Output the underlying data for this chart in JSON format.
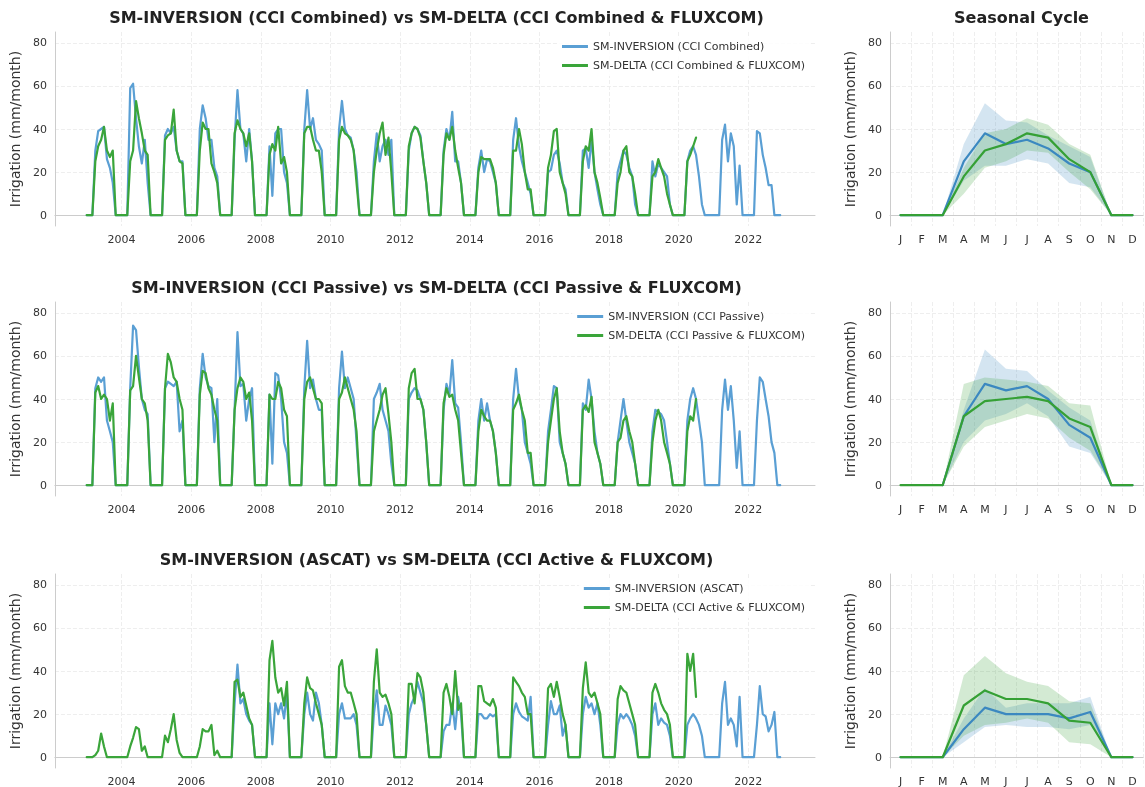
{
  "chart_data": [
    {
      "type": "line",
      "title": "SM-INVERSION (CCI Combined) vs SM-DELTA (CCI Combined & FLUXCOM)",
      "ylabel": "Irrigation (mm/month)",
      "xlim": [
        "2002-02",
        "2023-12"
      ],
      "xticks": [
        "2004",
        "2006",
        "2008",
        "2010",
        "2012",
        "2014",
        "2016",
        "2018",
        "2020",
        "2022"
      ],
      "ylim": [
        -5,
        85
      ],
      "yticks": [
        0,
        20,
        40,
        60,
        80
      ],
      "grid": true,
      "legend": "top right",
      "x": [
        "2003-01",
        "2003-03",
        "2003-04",
        "2003-05",
        "2003-06",
        "2003-07",
        "2003-08",
        "2003-09",
        "2003-10",
        "2003-11",
        "2004-03",
        "2004-04",
        "2004-05",
        "2004-06",
        "2004-07",
        "2004-08",
        "2004-09",
        "2004-10",
        "2004-11",
        "2005-03",
        "2005-04",
        "2005-05",
        "2005-06",
        "2005-07",
        "2005-08",
        "2005-09",
        "2005-10",
        "2005-11",
        "2006-03",
        "2006-04",
        "2006-05",
        "2006-06",
        "2006-07",
        "2006-08",
        "2006-09",
        "2006-10",
        "2006-11",
        "2007-03",
        "2007-04",
        "2007-05",
        "2007-06",
        "2007-07",
        "2007-08",
        "2007-09",
        "2007-10",
        "2007-11",
        "2008-03",
        "2008-04",
        "2008-05",
        "2008-06",
        "2008-07",
        "2008-08",
        "2008-09",
        "2008-10",
        "2008-11",
        "2009-03",
        "2009-04",
        "2009-05",
        "2009-06",
        "2009-07",
        "2009-08",
        "2009-09",
        "2009-10",
        "2009-11",
        "2010-03",
        "2010-04",
        "2010-05",
        "2010-06",
        "2010-07",
        "2010-08",
        "2010-09",
        "2010-10",
        "2010-11",
        "2011-03",
        "2011-04",
        "2011-05",
        "2011-06",
        "2011-07",
        "2011-08",
        "2011-09",
        "2011-10",
        "2011-11",
        "2012-03",
        "2012-04",
        "2012-05",
        "2012-06",
        "2012-07",
        "2012-08",
        "2012-09",
        "2012-10",
        "2012-11",
        "2013-03",
        "2013-04",
        "2013-05",
        "2013-06",
        "2013-07",
        "2013-08",
        "2013-09",
        "2013-10",
        "2013-11",
        "2014-03",
        "2014-04",
        "2014-05",
        "2014-06",
        "2014-07",
        "2014-08",
        "2014-09",
        "2014-10",
        "2014-11",
        "2015-03",
        "2015-04",
        "2015-05",
        "2015-06",
        "2015-07",
        "2015-08",
        "2015-09",
        "2015-10",
        "2015-11",
        "2016-03",
        "2016-04",
        "2016-05",
        "2016-06",
        "2016-07",
        "2016-08",
        "2016-09",
        "2016-10",
        "2016-11",
        "2017-03",
        "2017-04",
        "2017-05",
        "2017-06",
        "2017-07",
        "2017-08",
        "2017-09",
        "2017-10",
        "2017-11",
        "2018-03",
        "2018-04",
        "2018-05",
        "2018-06",
        "2018-07",
        "2018-08",
        "2018-09",
        "2018-10",
        "2018-11",
        "2019-03",
        "2019-04",
        "2019-05",
        "2019-06",
        "2019-07",
        "2019-08",
        "2019-09",
        "2019-10",
        "2019-11",
        "2020-03",
        "2020-04",
        "2020-05",
        "2020-06",
        "2020-07",
        "2020-08",
        "2020-09",
        "2020-10",
        "2020-11",
        "2021-03",
        "2021-04",
        "2021-05",
        "2021-06",
        "2021-07",
        "2021-08",
        "2021-09",
        "2021-10",
        "2021-11",
        "2022-03",
        "2022-04",
        "2022-05",
        "2022-06",
        "2022-07",
        "2022-08",
        "2022-09",
        "2022-10",
        "2022-11",
        "2022-12"
      ],
      "series": [
        {
          "name": "SM-INVERSION (CCI Combined)",
          "color": "#5a9fd4",
          "values": [
            0,
            0,
            30,
            39,
            40,
            41,
            26,
            22,
            15,
            0,
            0,
            59,
            61,
            45,
            32,
            24,
            35,
            15,
            0,
            0,
            37,
            40,
            38,
            41,
            30,
            25,
            25,
            0,
            0,
            40,
            51,
            45,
            35,
            35,
            22,
            18,
            0,
            0,
            35,
            58,
            40,
            38,
            25,
            40,
            25,
            0,
            0,
            32,
            9,
            38,
            40,
            40,
            20,
            15,
            0,
            0,
            40,
            58,
            40,
            45,
            35,
            33,
            30,
            0,
            0,
            40,
            53,
            40,
            37,
            36,
            30,
            20,
            0,
            0,
            25,
            38,
            25,
            32,
            35,
            28,
            35,
            0,
            0,
            30,
            38,
            41,
            40,
            37,
            25,
            15,
            0,
            0,
            30,
            40,
            35,
            48,
            25,
            25,
            15,
            0,
            0,
            22,
            30,
            20,
            26,
            25,
            20,
            15,
            0,
            0,
            35,
            45,
            32,
            25,
            20,
            15,
            10,
            0,
            0,
            20,
            21,
            28,
            30,
            24,
            15,
            12,
            0,
            0,
            30,
            31,
            22,
            35,
            20,
            12,
            5,
            0,
            0,
            20,
            25,
            30,
            28,
            22,
            18,
            5,
            0,
            0,
            25,
            18,
            24,
            22,
            20,
            18,
            5,
            0,
            0,
            25,
            30,
            32,
            28,
            18,
            5,
            0,
            0,
            0,
            35,
            42,
            25,
            38,
            32,
            5,
            23,
            0,
            0,
            39,
            38,
            28,
            22,
            14,
            14,
            0,
            0,
            0
          ]
        },
        {
          "name": "SM-DELTA (CCI Combined & FLUXCOM)",
          "color": "#3aa53a",
          "values": [
            0,
            0,
            25,
            32,
            35,
            41,
            30,
            27,
            30,
            0,
            0,
            25,
            30,
            53,
            45,
            38,
            30,
            28,
            0,
            0,
            35,
            37,
            38,
            49,
            30,
            25,
            24,
            0,
            0,
            30,
            43,
            40,
            40,
            24,
            20,
            15,
            0,
            0,
            38,
            44,
            40,
            38,
            32,
            38,
            25,
            0,
            0,
            28,
            33,
            30,
            41,
            24,
            27,
            20,
            0,
            0,
            38,
            41,
            41,
            35,
            30,
            30,
            20,
            0,
            0,
            35,
            41,
            38,
            37,
            35,
            30,
            15,
            0,
            0,
            20,
            30,
            38,
            43,
            28,
            36,
            20,
            0,
            0,
            32,
            38,
            41,
            40,
            36,
            25,
            15,
            0,
            0,
            28,
            38,
            35,
            41,
            30,
            22,
            15,
            0,
            0,
            20,
            27,
            26,
            26,
            26,
            22,
            15,
            0,
            0,
            30,
            30,
            40,
            33,
            20,
            12,
            12,
            0,
            0,
            22,
            28,
            39,
            40,
            20,
            15,
            10,
            0,
            0,
            25,
            32,
            30,
            40,
            20,
            15,
            8,
            0,
            0,
            15,
            20,
            30,
            32,
            20,
            18,
            10,
            0,
            0,
            18,
            20,
            26,
            22,
            18,
            10,
            5,
            0,
            0,
            25,
            28,
            32,
            36,
            null,
            null,
            null,
            null,
            null,
            null,
            null,
            null,
            null,
            null,
            null,
            null,
            null,
            null,
            null,
            null,
            null,
            null,
            null,
            null,
            null,
            null,
            null
          ]
        }
      ]
    },
    {
      "type": "line",
      "title": "Seasonal Cycle",
      "ylabel": "Irrigation (mm/month)",
      "categories": [
        "J",
        "F",
        "M",
        "A",
        "M",
        "J",
        "J",
        "A",
        "S",
        "O",
        "N",
        "D"
      ],
      "ylim": [
        -5,
        85
      ],
      "yticks": [
        0,
        20,
        40,
        60,
        80
      ],
      "grid": true,
      "series": [
        {
          "color": "#3b88c0",
          "values": [
            0,
            0,
            0,
            25,
            38,
            33,
            35,
            31,
            24,
            20,
            0,
            0
          ],
          "lower": [
            0,
            0,
            0,
            16,
            23,
            23,
            26,
            24,
            15,
            13,
            0,
            0
          ],
          "upper": [
            0,
            0,
            0,
            33,
            52,
            44,
            43,
            37,
            32,
            27,
            0,
            0
          ]
        },
        {
          "color": "#35a035",
          "values": [
            0,
            0,
            0,
            18,
            30,
            33,
            38,
            36,
            26,
            20,
            0,
            0
          ],
          "lower": [
            0,
            0,
            0,
            10,
            22,
            25,
            30,
            29,
            20,
            12,
            0,
            0
          ],
          "upper": [
            0,
            0,
            0,
            22,
            38,
            40,
            45,
            42,
            33,
            28,
            0,
            0
          ]
        }
      ]
    },
    {
      "type": "line",
      "title": "SM-INVERSION (CCI Passive) vs SM-DELTA (CCI Passive & FLUXCOM)",
      "ylabel": "Irrigation (mm/month)",
      "xlim": [
        "2002-02",
        "2023-12"
      ],
      "xticks": [
        "2004",
        "2006",
        "2008",
        "2010",
        "2012",
        "2014",
        "2016",
        "2018",
        "2020",
        "2022"
      ],
      "ylim": [
        -5,
        85
      ],
      "yticks": [
        0,
        20,
        40,
        60,
        80
      ],
      "grid": true,
      "legend": "top right",
      "x": [
        "2003-01",
        "2003-03",
        "2003-04",
        "2003-05",
        "2003-06",
        "2003-07",
        "2003-08",
        "2003-09",
        "2003-10",
        "2003-11",
        "2004-03",
        "2004-04",
        "2004-05",
        "2004-06",
        "2004-07",
        "2004-08",
        "2004-09",
        "2004-10",
        "2004-11",
        "2005-03",
        "2005-04",
        "2005-05",
        "2005-06",
        "2005-07",
        "2005-08",
        "2005-09",
        "2005-10",
        "2005-11",
        "2006-03",
        "2006-04",
        "2006-05",
        "2006-06",
        "2006-07",
        "2006-08",
        "2006-09",
        "2006-10",
        "2006-11",
        "2007-03",
        "2007-04",
        "2007-05",
        "2007-06",
        "2007-07",
        "2007-08",
        "2007-09",
        "2007-10",
        "2007-11",
        "2008-03",
        "2008-04",
        "2008-05",
        "2008-06",
        "2008-07",
        "2008-08",
        "2008-09",
        "2008-10",
        "2008-11",
        "2009-03",
        "2009-04",
        "2009-05",
        "2009-06",
        "2009-07",
        "2009-08",
        "2009-09",
        "2009-10",
        "2009-11",
        "2010-03",
        "2010-04",
        "2010-05",
        "2010-06",
        "2010-07",
        "2010-08",
        "2010-09",
        "2010-10",
        "2010-11",
        "2011-03",
        "2011-04",
        "2011-05",
        "2011-06",
        "2011-07",
        "2011-08",
        "2011-09",
        "2011-10",
        "2011-11",
        "2012-03",
        "2012-04",
        "2012-05",
        "2012-06",
        "2012-07",
        "2012-08",
        "2012-09",
        "2012-10",
        "2012-11",
        "2013-03",
        "2013-04",
        "2013-05",
        "2013-06",
        "2013-07",
        "2013-08",
        "2013-09",
        "2013-10",
        "2013-11",
        "2014-03",
        "2014-04",
        "2014-05",
        "2014-06",
        "2014-07",
        "2014-08",
        "2014-09",
        "2014-10",
        "2014-11",
        "2015-03",
        "2015-04",
        "2015-05",
        "2015-06",
        "2015-07",
        "2015-08",
        "2015-09",
        "2015-10",
        "2015-11",
        "2016-03",
        "2016-04",
        "2016-05",
        "2016-06",
        "2016-07",
        "2016-08",
        "2016-09",
        "2016-10",
        "2016-11",
        "2017-03",
        "2017-04",
        "2017-05",
        "2017-06",
        "2017-07",
        "2017-08",
        "2017-09",
        "2017-10",
        "2017-11",
        "2018-03",
        "2018-04",
        "2018-05",
        "2018-06",
        "2018-07",
        "2018-08",
        "2018-09",
        "2018-10",
        "2018-11",
        "2019-03",
        "2019-04",
        "2019-05",
        "2019-06",
        "2019-07",
        "2019-08",
        "2019-09",
        "2019-10",
        "2019-11",
        "2020-03",
        "2020-04",
        "2020-05",
        "2020-06",
        "2020-07",
        "2020-08",
        "2020-09",
        "2020-10",
        "2020-11",
        "2021-03",
        "2021-04",
        "2021-05",
        "2021-06",
        "2021-07",
        "2021-08",
        "2021-09",
        "2021-10",
        "2021-11",
        "2022-03",
        "2022-04",
        "2022-05",
        "2022-06",
        "2022-07",
        "2022-08",
        "2022-09",
        "2022-10",
        "2022-11",
        "2022-12"
      ],
      "series": [
        {
          "name": "SM-INVERSION (CCI Passive)",
          "color": "#5a9fd4",
          "values": [
            0,
            0,
            45,
            50,
            48,
            50,
            30,
            25,
            20,
            0,
            0,
            45,
            74,
            72,
            55,
            40,
            35,
            33,
            0,
            0,
            45,
            48,
            47,
            46,
            48,
            25,
            30,
            0,
            0,
            45,
            61,
            50,
            46,
            45,
            20,
            40,
            0,
            0,
            35,
            71,
            46,
            47,
            30,
            40,
            45,
            0,
            0,
            42,
            10,
            52,
            51,
            40,
            20,
            15,
            0,
            0,
            45,
            67,
            45,
            49,
            40,
            35,
            35,
            0,
            0,
            45,
            62,
            45,
            50,
            45,
            40,
            20,
            0,
            0,
            40,
            43,
            47,
            35,
            30,
            25,
            10,
            0,
            0,
            40,
            43,
            45,
            44,
            40,
            35,
            20,
            0,
            0,
            35,
            47,
            42,
            58,
            38,
            36,
            20,
            0,
            0,
            30,
            40,
            30,
            38,
            30,
            25,
            15,
            0,
            0,
            40,
            54,
            40,
            35,
            20,
            15,
            10,
            0,
            0,
            25,
            35,
            46,
            45,
            20,
            15,
            10,
            0,
            0,
            38,
            35,
            49,
            40,
            25,
            15,
            10,
            0,
            0,
            20,
            30,
            40,
            30,
            20,
            15,
            10,
            0,
            0,
            25,
            35,
            34,
            33,
            30,
            20,
            10,
            0,
            0,
            30,
            40,
            45,
            40,
            30,
            20,
            0,
            0,
            0,
            35,
            49,
            35,
            46,
            30,
            8,
            25,
            0,
            0,
            30,
            50,
            48,
            40,
            32,
            20,
            15,
            0,
            0
          ]
        },
        {
          "name": "SM-DELTA (CCI Passive & FLUXCOM)",
          "color": "#3aa53a",
          "values": [
            0,
            0,
            43,
            46,
            40,
            42,
            40,
            30,
            38,
            0,
            0,
            44,
            46,
            60,
            50,
            40,
            38,
            30,
            0,
            0,
            45,
            61,
            57,
            50,
            48,
            40,
            35,
            0,
            0,
            42,
            53,
            52,
            45,
            42,
            35,
            30,
            0,
            0,
            35,
            45,
            50,
            48,
            40,
            43,
            30,
            0,
            0,
            42,
            40,
            40,
            48,
            45,
            35,
            32,
            0,
            0,
            40,
            48,
            50,
            45,
            40,
            40,
            38,
            0,
            0,
            40,
            43,
            50,
            45,
            40,
            35,
            25,
            0,
            0,
            25,
            30,
            35,
            42,
            45,
            33,
            20,
            0,
            0,
            45,
            52,
            54,
            40,
            40,
            35,
            20,
            0,
            0,
            38,
            45,
            41,
            42,
            35,
            30,
            15,
            0,
            0,
            25,
            35,
            32,
            30,
            30,
            25,
            15,
            0,
            0,
            35,
            38,
            42,
            35,
            30,
            15,
            15,
            0,
            0,
            20,
            30,
            40,
            45,
            25,
            15,
            10,
            0,
            0,
            35,
            37,
            34,
            41,
            20,
            15,
            10,
            0,
            0,
            20,
            22,
            30,
            32,
            25,
            20,
            10,
            0,
            0,
            20,
            30,
            35,
            30,
            20,
            15,
            10,
            0,
            0,
            25,
            32,
            30,
            40,
            null,
            null,
            null,
            null,
            null,
            null,
            null,
            null,
            null,
            null,
            null,
            null,
            null,
            null,
            null,
            null,
            null,
            null,
            null,
            null,
            null,
            null,
            null
          ]
        }
      ]
    },
    {
      "type": "line",
      "ylabel": "Irrigation (mm/month)",
      "categories": [
        "J",
        "F",
        "M",
        "A",
        "M",
        "J",
        "J",
        "A",
        "S",
        "O",
        "N",
        "D"
      ],
      "ylim": [
        -5,
        85
      ],
      "yticks": [
        0,
        20,
        40,
        60,
        80
      ],
      "grid": true,
      "series": [
        {
          "color": "#3b88c0",
          "values": [
            null,
            null,
            0,
            32,
            47,
            44,
            46,
            40,
            28,
            22,
            0,
            0
          ],
          "lower": [
            0,
            0,
            0,
            20,
            30,
            33,
            38,
            32,
            18,
            15,
            0,
            0
          ],
          "upper": [
            0,
            0,
            0,
            35,
            63,
            54,
            53,
            44,
            36,
            30,
            0,
            0
          ]
        },
        {
          "color": "#35a035",
          "values": [
            0,
            0,
            0,
            32,
            39,
            40,
            41,
            39,
            31,
            27,
            0,
            0
          ],
          "lower": [
            0,
            0,
            0,
            18,
            27,
            30,
            33,
            31,
            22,
            16,
            0,
            0
          ],
          "upper": [
            0,
            0,
            0,
            47,
            50,
            49,
            48,
            46,
            38,
            37,
            0,
            0
          ]
        }
      ]
    },
    {
      "type": "line",
      "title": "SM-INVERSION (ASCAT) vs SM-DELTA (CCI Active & FLUXCOM)",
      "ylabel": "Irrigation (mm/month)",
      "xlim": [
        "2002-02",
        "2023-12"
      ],
      "xticks": [
        "2004",
        "2006",
        "2008",
        "2010",
        "2012",
        "2014",
        "2016",
        "2018",
        "2020",
        "2022"
      ],
      "ylim": [
        -5,
        85
      ],
      "yticks": [
        0,
        20,
        40,
        60,
        80
      ],
      "grid": true,
      "legend": "top right",
      "x": [
        "2003-01",
        "2003-03",
        "2003-04",
        "2003-05",
        "2003-06",
        "2003-07",
        "2003-08",
        "2003-09",
        "2003-10",
        "2003-11",
        "2004-03",
        "2004-04",
        "2004-05",
        "2004-06",
        "2004-07",
        "2004-08",
        "2004-09",
        "2004-10",
        "2004-11",
        "2005-03",
        "2005-04",
        "2005-05",
        "2005-06",
        "2005-07",
        "2005-08",
        "2005-09",
        "2005-10",
        "2005-11",
        "2006-03",
        "2006-04",
        "2006-05",
        "2006-06",
        "2006-07",
        "2006-08",
        "2006-09",
        "2006-10",
        "2006-11",
        "2007-03",
        "2007-04",
        "2007-05",
        "2007-06",
        "2007-07",
        "2007-08",
        "2007-09",
        "2007-10",
        "2007-11",
        "2008-03",
        "2008-04",
        "2008-05",
        "2008-06",
        "2008-07",
        "2008-08",
        "2008-09",
        "2008-10",
        "2008-11",
        "2009-03",
        "2009-04",
        "2009-05",
        "2009-06",
        "2009-07",
        "2009-08",
        "2009-09",
        "2009-10",
        "2009-11",
        "2010-03",
        "2010-04",
        "2010-05",
        "2010-06",
        "2010-07",
        "2010-08",
        "2010-09",
        "2010-10",
        "2010-11",
        "2011-03",
        "2011-04",
        "2011-05",
        "2011-06",
        "2011-07",
        "2011-08",
        "2011-09",
        "2011-10",
        "2011-11",
        "2012-03",
        "2012-04",
        "2012-05",
        "2012-06",
        "2012-07",
        "2012-08",
        "2012-09",
        "2012-10",
        "2012-11",
        "2013-03",
        "2013-04",
        "2013-05",
        "2013-06",
        "2013-07",
        "2013-08",
        "2013-09",
        "2013-10",
        "2013-11",
        "2014-03",
        "2014-04",
        "2014-05",
        "2014-06",
        "2014-07",
        "2014-08",
        "2014-09",
        "2014-10",
        "2014-11",
        "2015-03",
        "2015-04",
        "2015-05",
        "2015-06",
        "2015-07",
        "2015-08",
        "2015-09",
        "2015-10",
        "2015-11",
        "2016-03",
        "2016-04",
        "2016-05",
        "2016-06",
        "2016-07",
        "2016-08",
        "2016-09",
        "2016-10",
        "2016-11",
        "2017-03",
        "2017-04",
        "2017-05",
        "2017-06",
        "2017-07",
        "2017-08",
        "2017-09",
        "2017-10",
        "2017-11",
        "2018-03",
        "2018-04",
        "2018-05",
        "2018-06",
        "2018-07",
        "2018-08",
        "2018-09",
        "2018-10",
        "2018-11",
        "2019-03",
        "2019-04",
        "2019-05",
        "2019-06",
        "2019-07",
        "2019-08",
        "2019-09",
        "2019-10",
        "2019-11",
        "2020-03",
        "2020-04",
        "2020-05",
        "2020-06",
        "2020-07",
        "2020-08",
        "2020-09",
        "2020-10",
        "2020-11",
        "2021-03",
        "2021-04",
        "2021-05",
        "2021-06",
        "2021-07",
        "2021-08",
        "2021-09",
        "2021-10",
        "2021-11",
        "2022-03",
        "2022-04",
        "2022-05",
        "2022-06",
        "2022-07",
        "2022-08",
        "2022-09",
        "2022-10",
        "2022-11",
        "2022-12"
      ],
      "series": [
        {
          "name": "SM-INVERSION (ASCAT)",
          "color": "#5a9fd4",
          "values": [
            null,
            null,
            null,
            null,
            null,
            null,
            null,
            null,
            null,
            null,
            null,
            null,
            null,
            null,
            null,
            null,
            null,
            null,
            null,
            null,
            null,
            null,
            null,
            null,
            null,
            null,
            null,
            null,
            null,
            null,
            null,
            null,
            null,
            null,
            null,
            null,
            null,
            0,
            25,
            43,
            25,
            27,
            20,
            17,
            15,
            0,
            0,
            25,
            6,
            25,
            20,
            25,
            18,
            30,
            0,
            0,
            20,
            30,
            20,
            17,
            30,
            25,
            15,
            0,
            0,
            20,
            25,
            18,
            18,
            18,
            20,
            15,
            0,
            0,
            20,
            31,
            15,
            15,
            24,
            20,
            15,
            0,
            0,
            20,
            25,
            28,
            35,
            30,
            25,
            15,
            0,
            0,
            12,
            15,
            15,
            25,
            13,
            28,
            20,
            0,
            0,
            20,
            20,
            18,
            18,
            20,
            19,
            20,
            0,
            0,
            20,
            25,
            21,
            19,
            18,
            17,
            28,
            0,
            0,
            15,
            26,
            20,
            20,
            24,
            10,
            15,
            0,
            0,
            20,
            28,
            23,
            25,
            20,
            25,
            15,
            0,
            0,
            15,
            20,
            18,
            20,
            18,
            15,
            10,
            0,
            0,
            20,
            25,
            15,
            18,
            16,
            15,
            10,
            0,
            0,
            15,
            18,
            20,
            18,
            15,
            10,
            0,
            0,
            0,
            25,
            35,
            15,
            18,
            15,
            5,
            28,
            0,
            0,
            15,
            33,
            20,
            19,
            12,
            15,
            21,
            0,
            0
          ]
        },
        {
          "name": "SM-DELTA (CCI Active & FLUXCOM)",
          "color": "#3aa53a",
          "values": [
            0,
            0,
            1,
            3,
            11,
            5,
            0,
            0,
            0,
            0,
            0,
            5,
            9,
            14,
            13,
            3,
            5,
            0,
            0,
            0,
            10,
            7,
            13,
            20,
            8,
            2,
            0,
            0,
            0,
            5,
            13,
            12,
            12,
            15,
            1,
            3,
            0,
            0,
            35,
            36,
            28,
            30,
            24,
            18,
            15,
            0,
            0,
            45,
            54,
            37,
            30,
            32,
            24,
            35,
            0,
            0,
            25,
            37,
            32,
            31,
            25,
            20,
            15,
            0,
            0,
            42,
            45,
            33,
            30,
            30,
            25,
            20,
            0,
            0,
            35,
            50,
            30,
            28,
            29,
            25,
            20,
            0,
            0,
            34,
            34,
            25,
            39,
            37,
            30,
            15,
            0,
            0,
            30,
            34,
            28,
            20,
            40,
            22,
            25,
            0,
            0,
            33,
            33,
            26,
            25,
            24,
            27,
            23,
            0,
            0,
            37,
            35,
            33,
            30,
            28,
            20,
            20,
            0,
            0,
            32,
            34,
            28,
            35,
            28,
            20,
            15,
            0,
            0,
            32,
            44,
            30,
            28,
            30,
            25,
            20,
            0,
            0,
            27,
            33,
            31,
            30,
            25,
            20,
            15,
            0,
            0,
            30,
            34,
            30,
            25,
            22,
            20,
            15,
            0,
            0,
            48,
            40,
            48,
            28,
            null,
            null,
            null,
            null,
            null,
            null,
            null,
            null,
            null,
            null,
            null,
            null,
            null,
            null,
            null,
            null,
            null,
            null,
            null,
            null,
            null,
            null,
            null
          ]
        }
      ]
    },
    {
      "type": "line",
      "ylabel": "Irrigation (mm/month)",
      "categories": [
        "J",
        "F",
        "M",
        "A",
        "M",
        "J",
        "J",
        "A",
        "S",
        "O",
        "N",
        "D"
      ],
      "ylim": [
        -5,
        85
      ],
      "yticks": [
        0,
        20,
        40,
        60,
        80
      ],
      "grid": true,
      "series": [
        {
          "color": "#3b88c0",
          "values": [
            0,
            0,
            0,
            13,
            23,
            20,
            20,
            20,
            18,
            21,
            0,
            0
          ],
          "lower": [
            0,
            0,
            0,
            7,
            14,
            15,
            14,
            14,
            13,
            15,
            0,
            0
          ],
          "upper": [
            0,
            0,
            0,
            18,
            32,
            23,
            25,
            25,
            25,
            28,
            0,
            0
          ]
        },
        {
          "color": "#35a035",
          "values": [
            0,
            0,
            0,
            24,
            31,
            27,
            27,
            25,
            17,
            16,
            0,
            0
          ],
          "lower": [
            0,
            0,
            0,
            10,
            15,
            16,
            18,
            16,
            7,
            6,
            0,
            0
          ],
          "upper": [
            0,
            0,
            0,
            38,
            47,
            39,
            35,
            33,
            26,
            25,
            0,
            0
          ]
        }
      ]
    }
  ]
}
